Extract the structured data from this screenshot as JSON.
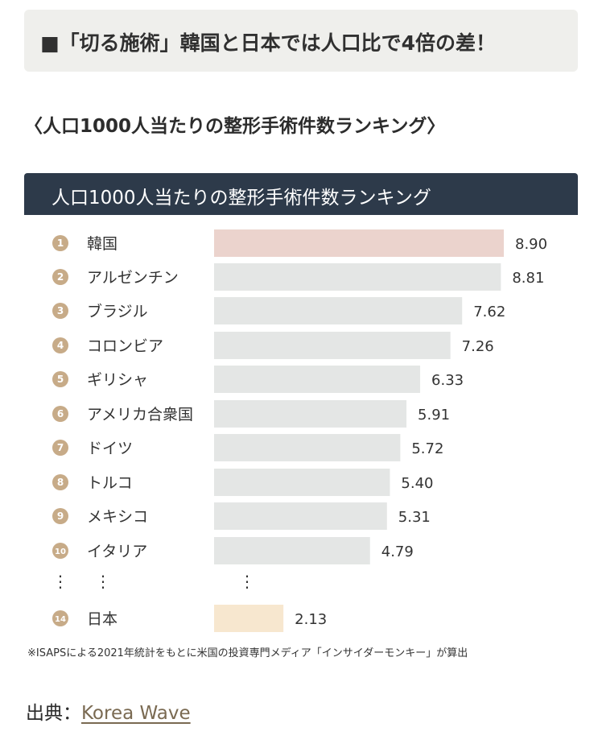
{
  "headline": "■「切る施術」韓国と日本では人口比で4倍の差！",
  "section_heading": "〈人口1000人当たりの整形手術件数ランキング〉",
  "chart_header": "人口1000人当たりの整形手術件数ランキング",
  "chart_data": {
    "type": "bar",
    "orientation": "horizontal",
    "title": "人口1000人当たりの整形手術件数ランキング",
    "categories": [
      "韓国",
      "アルゼンチン",
      "ブラジル",
      "コロンビア",
      "ギリシャ",
      "アメリカ合衆国",
      "ドイツ",
      "トルコ",
      "メキシコ",
      "イタリア",
      "日本"
    ],
    "ranks": [
      "1",
      "2",
      "3",
      "4",
      "5",
      "6",
      "7",
      "8",
      "9",
      "10",
      "14"
    ],
    "values": [
      8.9,
      8.81,
      7.62,
      7.26,
      6.33,
      5.91,
      5.72,
      5.4,
      5.31,
      4.79,
      2.13
    ],
    "value_labels": [
      "8.90",
      "8.81",
      "7.62",
      "7.26",
      "6.33",
      "5.91",
      "5.72",
      "5.40",
      "5.31",
      "4.79",
      "2.13"
    ],
    "ellipsis": "⋮",
    "colors": {
      "default": "#e4e6e5",
      "korea": "#ebd3cd",
      "japan": "#f7e7cf",
      "rank_circle": "#c7ab88",
      "header_bg": "#2d3a4a"
    }
  },
  "note": "※ISAPSによる2021年統計をもとに米国の投資専門メディア「インサイダーモンキー」が算出",
  "source": {
    "label": "出典：",
    "link_text": "Korea Wave"
  }
}
